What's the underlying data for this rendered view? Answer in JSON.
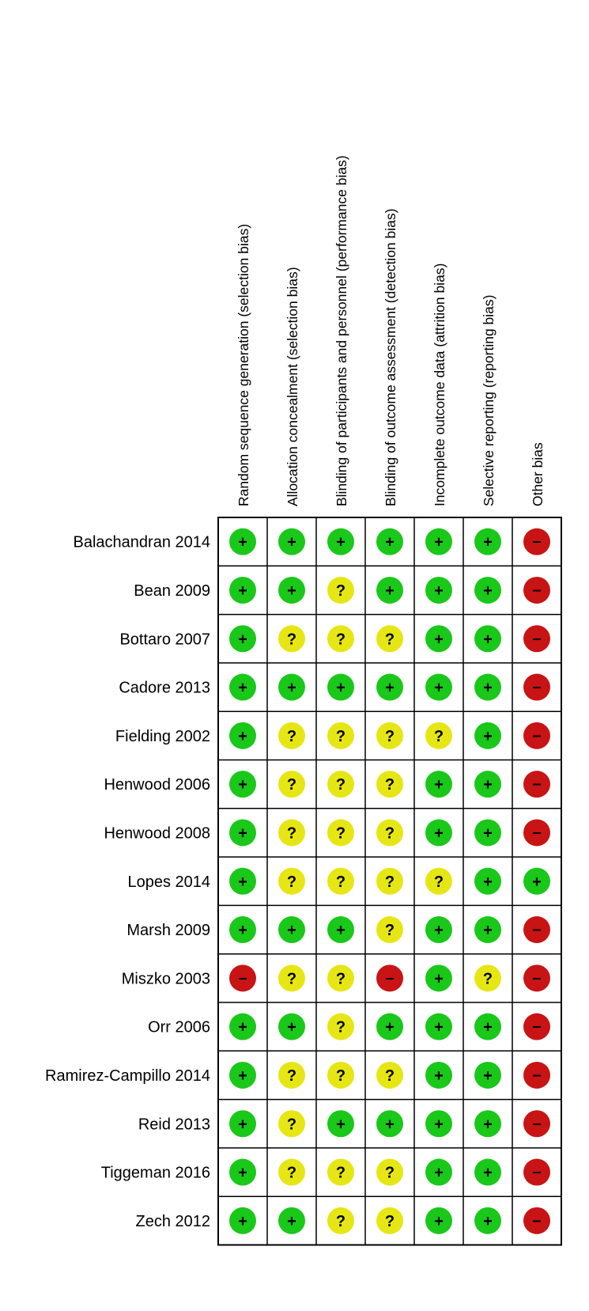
{
  "chart_data": {
    "type": "table",
    "domains": [
      "Random sequence generation (selection bias)",
      "Allocation concealment (selection bias)",
      "Blinding of participants and personnel (performance bias)",
      "Blinding of outcome assessment (detection bias)",
      "Incomplete outcome data (attrition bias)",
      "Selective reporting (reporting bias)",
      "Other bias"
    ],
    "studies": [
      "Balachandran 2014",
      "Bean 2009",
      "Bottaro 2007",
      "Cadore 2013",
      "Fielding 2002",
      "Henwood 2006",
      "Henwood 2008",
      "Lopes 2014",
      "Marsh 2009",
      "Miszko 2003",
      "Orr 2006",
      "Ramirez-Campillo 2014",
      "Reid 2013",
      "Tiggeman 2016",
      "Zech 2012"
    ],
    "judgements": [
      [
        "+",
        "+",
        "+",
        "+",
        "+",
        "+",
        "-"
      ],
      [
        "+",
        "+",
        "?",
        "+",
        "+",
        "+",
        "-"
      ],
      [
        "+",
        "?",
        "?",
        "?",
        "+",
        "+",
        "-"
      ],
      [
        "+",
        "+",
        "+",
        "+",
        "+",
        "+",
        "-"
      ],
      [
        "+",
        "?",
        "?",
        "?",
        "?",
        "+",
        "-"
      ],
      [
        "+",
        "?",
        "?",
        "?",
        "+",
        "+",
        "-"
      ],
      [
        "+",
        "?",
        "?",
        "?",
        "+",
        "+",
        "-"
      ],
      [
        "+",
        "?",
        "?",
        "?",
        "?",
        "+",
        "+"
      ],
      [
        "+",
        "+",
        "+",
        "?",
        "+",
        "+",
        "-"
      ],
      [
        "-",
        "?",
        "?",
        "-",
        "+",
        "?",
        "-"
      ],
      [
        "+",
        "+",
        "?",
        "+",
        "+",
        "+",
        "-"
      ],
      [
        "+",
        "?",
        "?",
        "?",
        "+",
        "+",
        "-"
      ],
      [
        "+",
        "?",
        "+",
        "+",
        "+",
        "+",
        "-"
      ],
      [
        "+",
        "?",
        "?",
        "?",
        "+",
        "+",
        "-"
      ],
      [
        "+",
        "+",
        "?",
        "?",
        "+",
        "+",
        "-"
      ]
    ],
    "colors": {
      "+": "#19c819",
      "?": "#e6e614",
      "-": "#c81414"
    }
  }
}
